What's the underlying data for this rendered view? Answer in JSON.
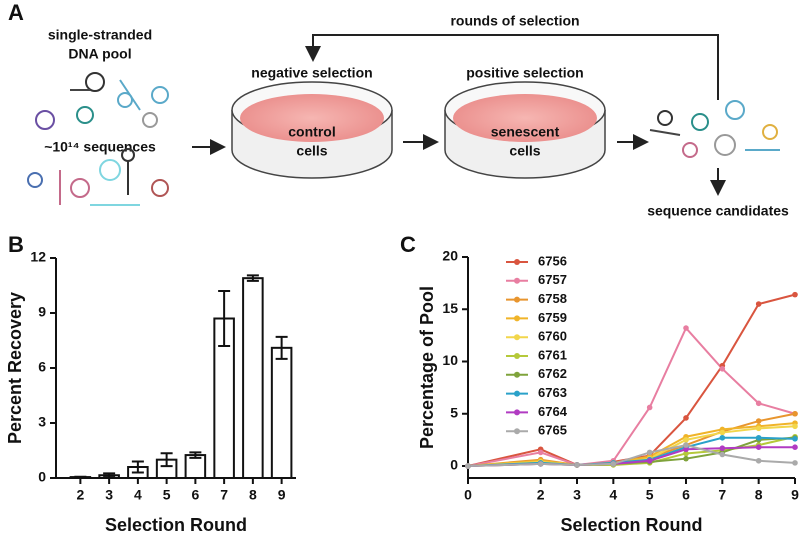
{
  "panel_a": {
    "label": "A",
    "pool_title_lines": [
      "single-stranded",
      "DNA pool"
    ],
    "pool_size": "~10¹⁴ sequences",
    "loop_label": "rounds of selection",
    "negative_title": "negative selection",
    "negative_dish_lines": [
      "control",
      "cells"
    ],
    "positive_title": "positive selection",
    "positive_dish_lines": [
      "senescent",
      "cells"
    ],
    "output_label": "sequence candidates"
  },
  "chart_data": [
    {
      "type": "bar",
      "panel_label": "B",
      "x_label": "Selection Round",
      "y_label": "Percent Recovery",
      "categories": [
        "2",
        "3",
        "4",
        "5",
        "6",
        "7",
        "8",
        "9"
      ],
      "values": [
        0.05,
        0.15,
        0.6,
        1.0,
        1.25,
        8.7,
        10.9,
        7.1
      ],
      "errors": [
        0.02,
        0.1,
        0.3,
        0.35,
        0.15,
        1.5,
        0.15,
        0.6
      ],
      "color": "#ffffff",
      "ylim": [
        0,
        12
      ],
      "yticks": [
        0,
        3,
        6,
        9,
        12
      ]
    },
    {
      "type": "line",
      "panel_label": "C",
      "x_label": "Selection Round",
      "y_label": "Percentage of Pool",
      "x": [
        0,
        2,
        3,
        4,
        5,
        6,
        7,
        8,
        9
      ],
      "xlim": [
        0,
        9
      ],
      "xticks": [
        0,
        2,
        3,
        4,
        5,
        6,
        7,
        8,
        9
      ],
      "ylim": [
        0,
        20
      ],
      "yticks": [
        0,
        5,
        10,
        15,
        20
      ],
      "legend": "upper left",
      "series": [
        {
          "name": "6756",
          "color": "#d9553f",
          "values": [
            0,
            1.6,
            0.1,
            0.4,
            1.0,
            4.6,
            9.6,
            15.5,
            16.4
          ]
        },
        {
          "name": "6757",
          "color": "#e87ea1",
          "values": [
            0,
            1.3,
            0.1,
            0.5,
            5.6,
            13.2,
            9.3,
            6.0,
            5.0
          ]
        },
        {
          "name": "6758",
          "color": "#e8952e",
          "values": [
            0,
            0.6,
            0.1,
            0.3,
            0.8,
            2.0,
            3.3,
            4.3,
            5.0
          ]
        },
        {
          "name": "6759",
          "color": "#f0b429",
          "values": [
            0,
            0.5,
            0.1,
            0.3,
            0.9,
            2.8,
            3.5,
            3.8,
            4.1
          ]
        },
        {
          "name": "6760",
          "color": "#f2d64b",
          "values": [
            0,
            0.4,
            0.1,
            0.2,
            0.7,
            2.5,
            3.2,
            3.6,
            3.8
          ]
        },
        {
          "name": "6761",
          "color": "#b5c93a",
          "values": [
            0,
            0.3,
            0.1,
            0.1,
            0.3,
            1.2,
            1.5,
            2.0,
            2.8
          ]
        },
        {
          "name": "6762",
          "color": "#7fa33b",
          "values": [
            0,
            0.2,
            0.1,
            0.2,
            0.4,
            0.7,
            1.3,
            2.5,
            2.7
          ]
        },
        {
          "name": "6763",
          "color": "#2aa1c9",
          "values": [
            0,
            0.3,
            0.1,
            0.3,
            0.6,
            1.8,
            2.7,
            2.7,
            2.6
          ]
        },
        {
          "name": "6764",
          "color": "#b13bc2",
          "values": [
            0,
            0.2,
            0.1,
            0.2,
            0.5,
            1.6,
            1.7,
            1.8,
            1.8
          ]
        },
        {
          "name": "6765",
          "color": "#aaaaaa",
          "values": [
            0,
            0.2,
            0.1,
            0.2,
            1.3,
            2.0,
            1.1,
            0.5,
            0.3
          ]
        }
      ]
    }
  ]
}
